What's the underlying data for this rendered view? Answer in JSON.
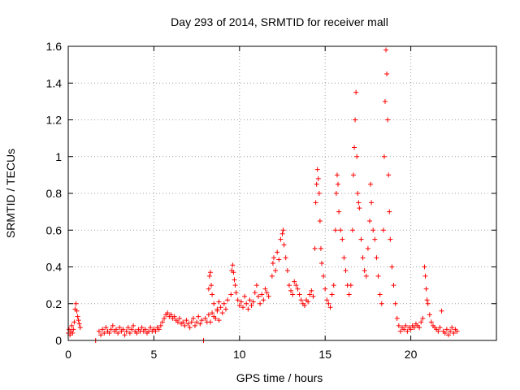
{
  "chart_data": {
    "type": "scatter",
    "title": "Day 293 of 2014, SRMTID for receiver mall",
    "xlabel": "GPS time / hours",
    "ylabel": "SRMTID / TECUs",
    "xlim": [
      0,
      25
    ],
    "ylim": [
      0,
      1.6
    ],
    "xticks": [
      0,
      5,
      10,
      15,
      20
    ],
    "xtick_labels": [
      "0",
      "5",
      "10",
      "15",
      "20"
    ],
    "yticks": [
      0,
      0.2,
      0.4,
      0.6,
      0.8,
      1.0,
      1.2,
      1.4,
      1.6
    ],
    "ytick_labels": [
      "0",
      "0.2",
      "0.4",
      "0.6",
      "0.8",
      "1",
      "1.2",
      "1.4",
      "1.6"
    ],
    "grid": true,
    "marker": "plus",
    "color": "#ff0000",
    "series": [
      {
        "name": "SRMTID",
        "points": [
          [
            0.0,
            0.04
          ],
          [
            0.05,
            0.06
          ],
          [
            0.1,
            0.03
          ],
          [
            0.15,
            0.05
          ],
          [
            0.2,
            0.08
          ],
          [
            0.25,
            0.04
          ],
          [
            0.3,
            0.06
          ],
          [
            0.35,
            0.1
          ],
          [
            0.4,
            0.17
          ],
          [
            0.45,
            0.2
          ],
          [
            0.5,
            0.16
          ],
          [
            0.55,
            0.13
          ],
          [
            0.6,
            0.11
          ],
          [
            0.65,
            0.09
          ],
          [
            0.7,
            0.07
          ],
          [
            1.6,
            0.0
          ],
          [
            1.8,
            0.05
          ],
          [
            1.9,
            0.03
          ],
          [
            2.0,
            0.06
          ],
          [
            2.1,
            0.04
          ],
          [
            2.2,
            0.07
          ],
          [
            2.3,
            0.05
          ],
          [
            2.4,
            0.04
          ],
          [
            2.5,
            0.06
          ],
          [
            2.6,
            0.08
          ],
          [
            2.7,
            0.05
          ],
          [
            2.8,
            0.06
          ],
          [
            2.9,
            0.04
          ],
          [
            3.0,
            0.07
          ],
          [
            3.1,
            0.05
          ],
          [
            3.2,
            0.06
          ],
          [
            3.3,
            0.03
          ],
          [
            3.4,
            0.05
          ],
          [
            3.5,
            0.07
          ],
          [
            3.6,
            0.04
          ],
          [
            3.7,
            0.06
          ],
          [
            3.8,
            0.08
          ],
          [
            3.9,
            0.05
          ],
          [
            4.0,
            0.04
          ],
          [
            4.1,
            0.06
          ],
          [
            4.2,
            0.05
          ],
          [
            4.3,
            0.07
          ],
          [
            4.4,
            0.05
          ],
          [
            4.5,
            0.06
          ],
          [
            4.6,
            0.04
          ],
          [
            4.7,
            0.05
          ],
          [
            4.8,
            0.07
          ],
          [
            4.9,
            0.05
          ],
          [
            5.0,
            0.06
          ],
          [
            5.1,
            0.05
          ],
          [
            5.2,
            0.07
          ],
          [
            5.3,
            0.06
          ],
          [
            5.4,
            0.08
          ],
          [
            5.5,
            0.1
          ],
          [
            5.6,
            0.12
          ],
          [
            5.7,
            0.14
          ],
          [
            5.8,
            0.15
          ],
          [
            5.9,
            0.13
          ],
          [
            6.0,
            0.14
          ],
          [
            6.1,
            0.12
          ],
          [
            6.2,
            0.13
          ],
          [
            6.3,
            0.11
          ],
          [
            6.4,
            0.1
          ],
          [
            6.5,
            0.12
          ],
          [
            6.6,
            0.09
          ],
          [
            6.7,
            0.1
          ],
          [
            6.8,
            0.08
          ],
          [
            6.9,
            0.11
          ],
          [
            7.0,
            0.09
          ],
          [
            7.1,
            0.07
          ],
          [
            7.2,
            0.1
          ],
          [
            7.3,
            0.12
          ],
          [
            7.4,
            0.08
          ],
          [
            7.5,
            0.1
          ],
          [
            7.6,
            0.13
          ],
          [
            7.7,
            0.09
          ],
          [
            7.8,
            0.11
          ],
          [
            7.9,
            0.0
          ],
          [
            8.0,
            0.12
          ],
          [
            8.1,
            0.1
          ],
          [
            8.2,
            0.14
          ],
          [
            8.3,
            0.1
          ],
          [
            8.4,
            0.15
          ],
          [
            8.5,
            0.13
          ],
          [
            8.6,
            0.12
          ],
          [
            8.7,
            0.16
          ],
          [
            8.8,
            0.11
          ],
          [
            8.9,
            0.18
          ],
          [
            9.0,
            0.15
          ],
          [
            9.1,
            0.2
          ],
          [
            9.2,
            0.17
          ],
          [
            9.3,
            0.22
          ],
          [
            8.2,
            0.28
          ],
          [
            8.25,
            0.35
          ],
          [
            8.3,
            0.37
          ],
          [
            8.35,
            0.3
          ],
          [
            8.4,
            0.25
          ],
          [
            8.5,
            0.2
          ],
          [
            8.7,
            0.17
          ],
          [
            8.8,
            0.21
          ],
          [
            9.5,
            0.25
          ],
          [
            9.55,
            0.38
          ],
          [
            9.6,
            0.41
          ],
          [
            9.65,
            0.37
          ],
          [
            9.7,
            0.33
          ],
          [
            9.75,
            0.3
          ],
          [
            9.8,
            0.26
          ],
          [
            9.9,
            0.22
          ],
          [
            10.0,
            0.19
          ],
          [
            10.1,
            0.21
          ],
          [
            10.2,
            0.18
          ],
          [
            10.3,
            0.24
          ],
          [
            10.4,
            0.2
          ],
          [
            10.5,
            0.17
          ],
          [
            10.6,
            0.22
          ],
          [
            10.7,
            0.19
          ],
          [
            10.8,
            0.21
          ],
          [
            10.9,
            0.26
          ],
          [
            11.0,
            0.3
          ],
          [
            11.1,
            0.24
          ],
          [
            11.2,
            0.2
          ],
          [
            11.3,
            0.25
          ],
          [
            11.4,
            0.22
          ],
          [
            11.5,
            0.28
          ],
          [
            11.6,
            0.26
          ],
          [
            11.7,
            0.24
          ],
          [
            11.9,
            0.35
          ],
          [
            11.95,
            0.42
          ],
          [
            12.0,
            0.45
          ],
          [
            12.1,
            0.38
          ],
          [
            12.2,
            0.48
          ],
          [
            12.3,
            0.44
          ],
          [
            12.4,
            0.55
          ],
          [
            12.5,
            0.58
          ],
          [
            12.55,
            0.6
          ],
          [
            12.6,
            0.52
          ],
          [
            12.7,
            0.45
          ],
          [
            12.8,
            0.38
          ],
          [
            12.9,
            0.3
          ],
          [
            13.0,
            0.27
          ],
          [
            13.1,
            0.25
          ],
          [
            13.2,
            0.32
          ],
          [
            13.3,
            0.3
          ],
          [
            13.4,
            0.28
          ],
          [
            13.5,
            0.25
          ],
          [
            13.6,
            0.22
          ],
          [
            13.7,
            0.2
          ],
          [
            13.8,
            0.19
          ],
          [
            13.9,
            0.22
          ],
          [
            14.0,
            0.21
          ],
          [
            14.1,
            0.25
          ],
          [
            14.2,
            0.27
          ],
          [
            14.3,
            0.24
          ],
          [
            14.4,
            0.5
          ],
          [
            14.45,
            0.75
          ],
          [
            14.5,
            0.85
          ],
          [
            14.55,
            0.93
          ],
          [
            14.6,
            0.88
          ],
          [
            14.65,
            0.8
          ],
          [
            14.7,
            0.65
          ],
          [
            14.75,
            0.5
          ],
          [
            14.8,
            0.42
          ],
          [
            14.9,
            0.35
          ],
          [
            15.0,
            0.28
          ],
          [
            15.1,
            0.22
          ],
          [
            15.2,
            0.2
          ],
          [
            15.3,
            0.18
          ],
          [
            15.4,
            0.25
          ],
          [
            15.5,
            0.3
          ],
          [
            15.6,
            0.6
          ],
          [
            15.65,
            0.8
          ],
          [
            15.7,
            0.9
          ],
          [
            15.75,
            0.85
          ],
          [
            15.8,
            0.7
          ],
          [
            15.9,
            0.6
          ],
          [
            16.0,
            0.55
          ],
          [
            16.1,
            0.45
          ],
          [
            16.2,
            0.38
          ],
          [
            16.3,
            0.3
          ],
          [
            16.4,
            0.25
          ],
          [
            16.5,
            0.3
          ],
          [
            16.6,
            0.6
          ],
          [
            16.65,
            0.9
          ],
          [
            16.7,
            1.05
          ],
          [
            16.75,
            1.2
          ],
          [
            16.8,
            1.35
          ],
          [
            16.85,
            1.0
          ],
          [
            16.9,
            0.8
          ],
          [
            16.95,
            0.75
          ],
          [
            17.0,
            0.72
          ],
          [
            17.1,
            0.55
          ],
          [
            17.2,
            0.45
          ],
          [
            17.3,
            0.38
          ],
          [
            17.4,
            0.35
          ],
          [
            17.5,
            0.5
          ],
          [
            17.6,
            0.65
          ],
          [
            17.65,
            0.85
          ],
          [
            17.7,
            0.75
          ],
          [
            17.8,
            0.6
          ],
          [
            17.9,
            0.55
          ],
          [
            18.0,
            0.45
          ],
          [
            18.1,
            0.35
          ],
          [
            18.2,
            0.25
          ],
          [
            18.3,
            0.2
          ],
          [
            18.4,
            0.6
          ],
          [
            18.45,
            1.0
          ],
          [
            18.5,
            1.3
          ],
          [
            18.55,
            1.58
          ],
          [
            18.6,
            1.45
          ],
          [
            18.65,
            1.2
          ],
          [
            18.7,
            0.9
          ],
          [
            18.75,
            0.7
          ],
          [
            18.8,
            0.55
          ],
          [
            18.9,
            0.4
          ],
          [
            19.0,
            0.3
          ],
          [
            19.1,
            0.2
          ],
          [
            19.2,
            0.12
          ],
          [
            19.3,
            0.08
          ],
          [
            19.4,
            0.05
          ],
          [
            19.5,
            0.07
          ],
          [
            19.6,
            0.06
          ],
          [
            19.7,
            0.08
          ],
          [
            19.8,
            0.05
          ],
          [
            19.9,
            0.07
          ],
          [
            20.0,
            0.06
          ],
          [
            20.1,
            0.08
          ],
          [
            20.2,
            0.07
          ],
          [
            20.3,
            0.09
          ],
          [
            20.4,
            0.08
          ],
          [
            20.5,
            0.07
          ],
          [
            20.6,
            0.1
          ],
          [
            20.7,
            0.12
          ],
          [
            20.8,
            0.4
          ],
          [
            20.85,
            0.35
          ],
          [
            20.9,
            0.28
          ],
          [
            20.95,
            0.22
          ],
          [
            21.0,
            0.2
          ],
          [
            21.1,
            0.14
          ],
          [
            21.2,
            0.1
          ],
          [
            21.3,
            0.08
          ],
          [
            21.4,
            0.07
          ],
          [
            21.5,
            0.06
          ],
          [
            21.6,
            0.05
          ],
          [
            21.7,
            0.07
          ],
          [
            21.8,
            0.16
          ],
          [
            21.9,
            0.05
          ],
          [
            22.0,
            0.04
          ],
          [
            22.1,
            0.06
          ],
          [
            22.2,
            0.03
          ],
          [
            22.3,
            0.05
          ],
          [
            22.4,
            0.07
          ],
          [
            22.5,
            0.04
          ],
          [
            22.6,
            0.06
          ],
          [
            22.7,
            0.05
          ]
        ]
      }
    ]
  }
}
